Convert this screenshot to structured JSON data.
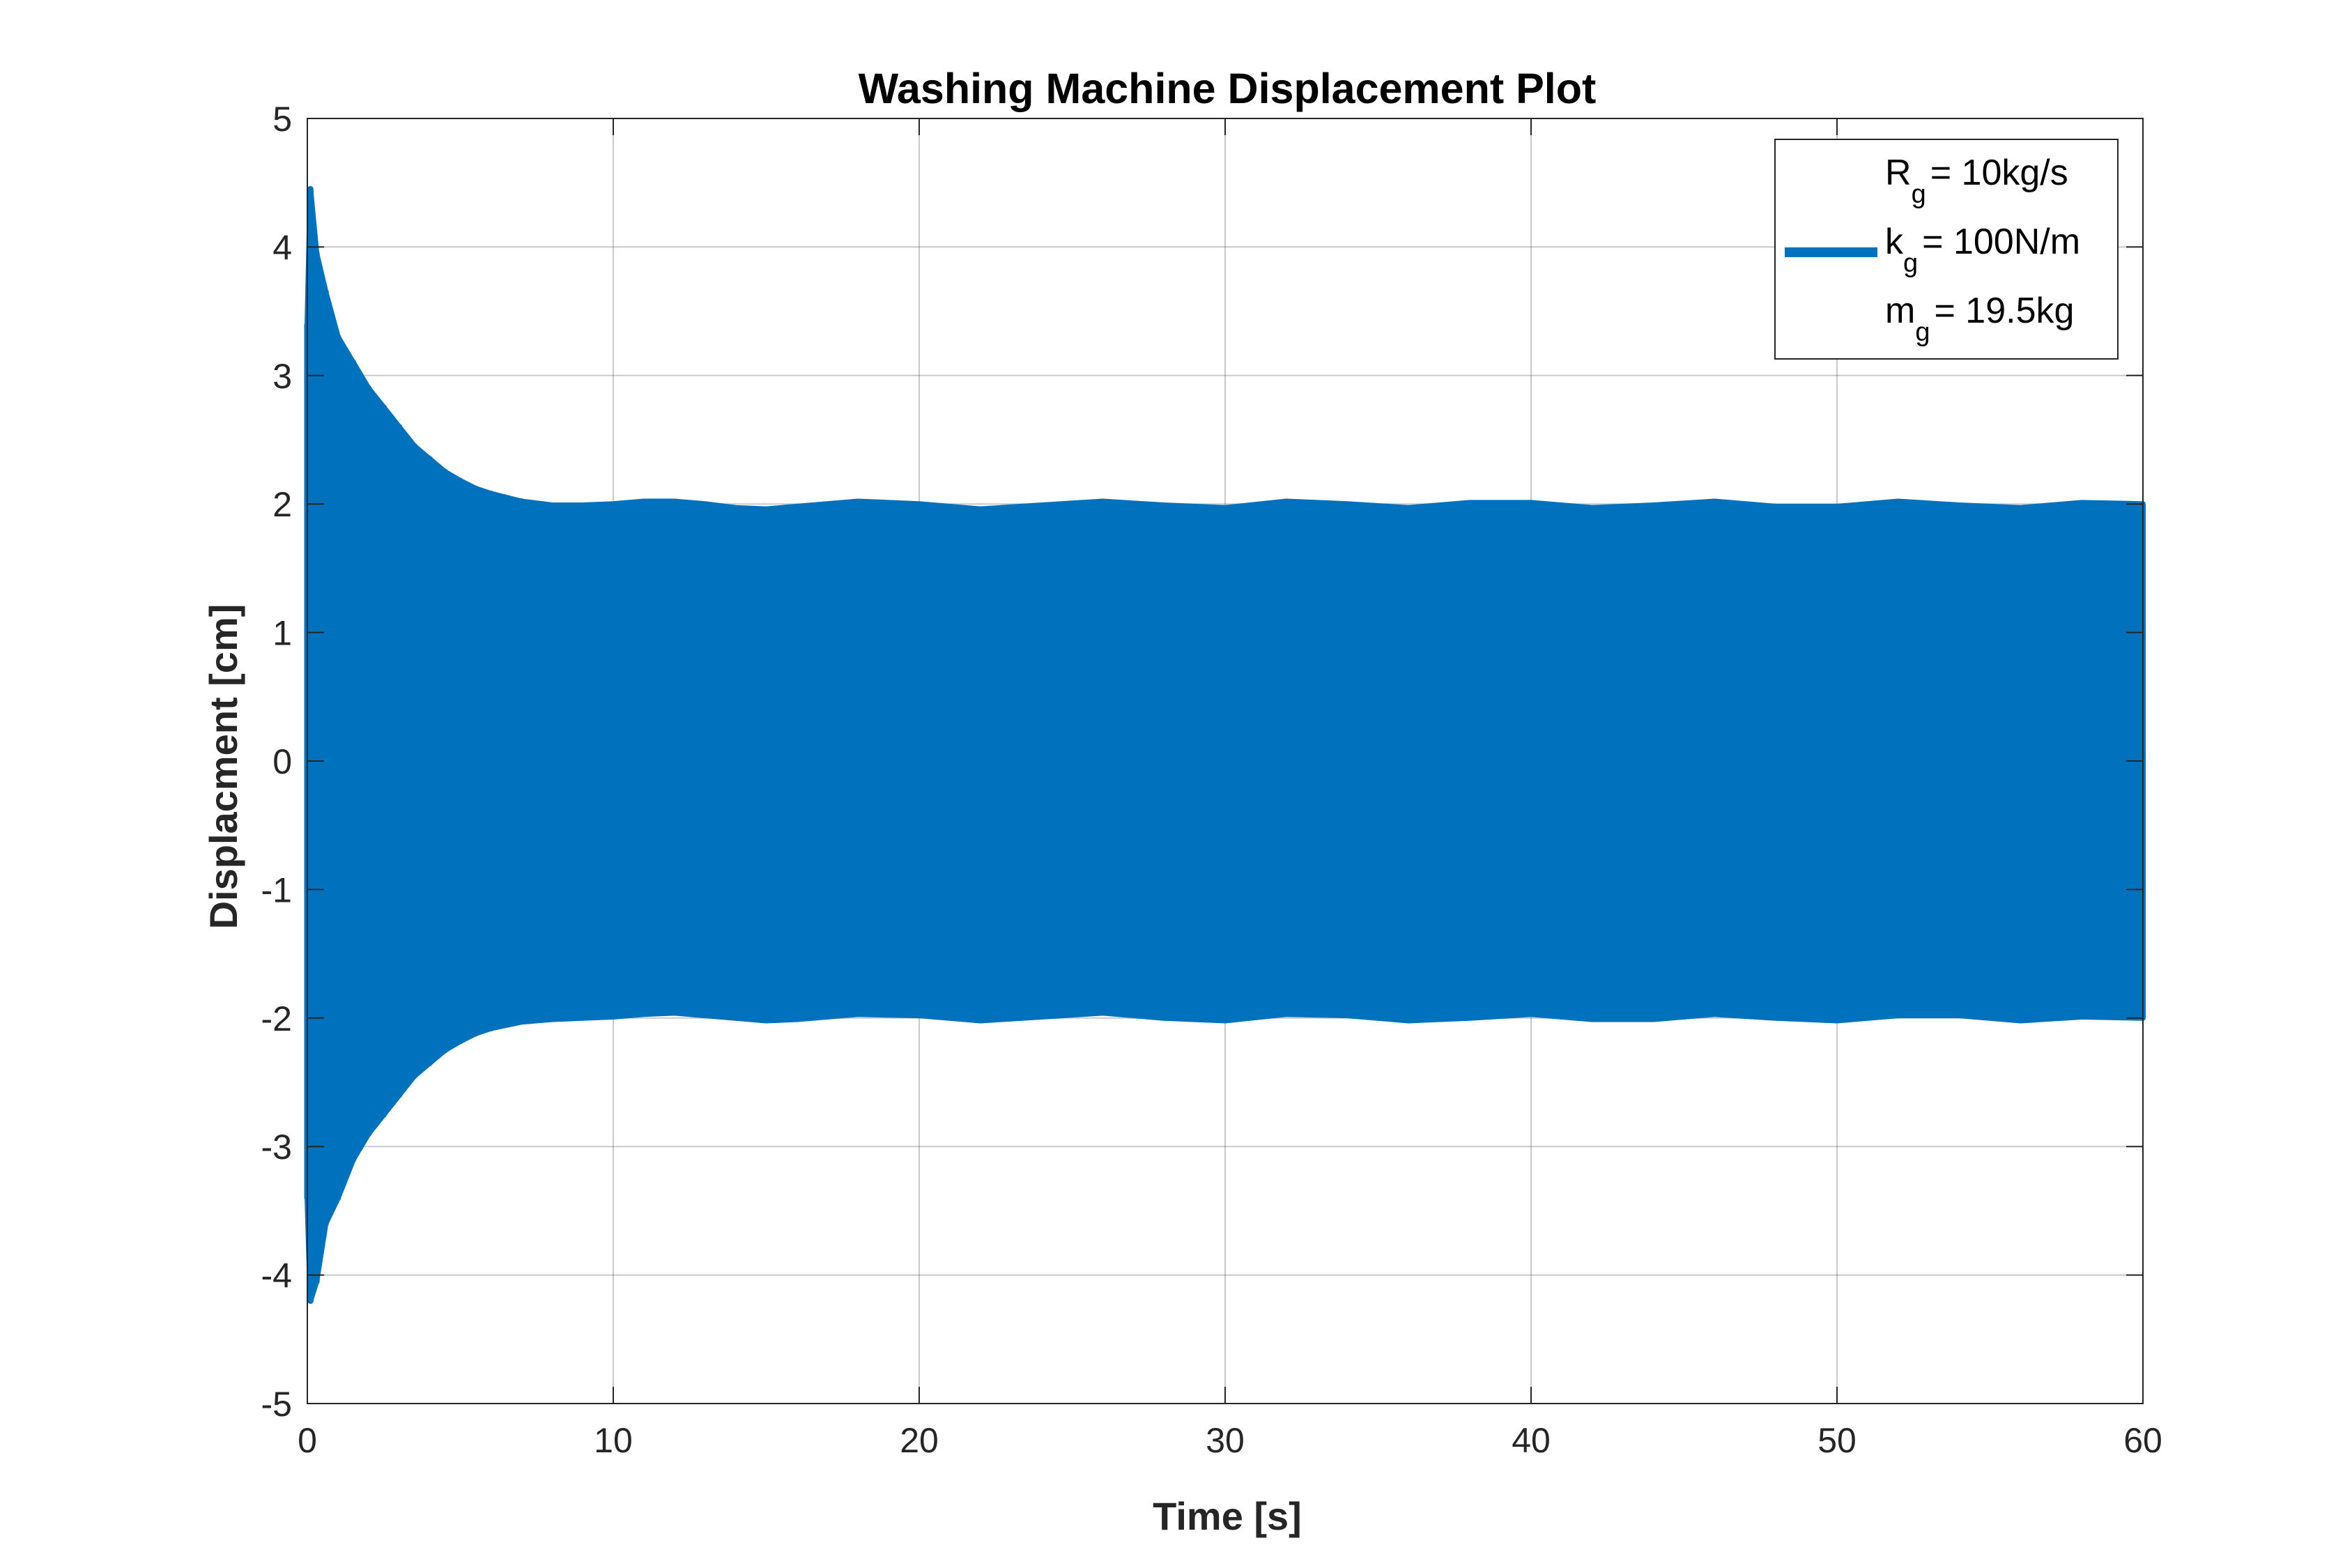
{
  "chart_data": {
    "type": "line",
    "title": "Washing Machine Displacement Plot",
    "xlabel": "Time [s]",
    "ylabel": "Displacment [cm]",
    "xlim": [
      0,
      60
    ],
    "ylim": [
      -5,
      5
    ],
    "xticks": [
      0,
      10,
      20,
      30,
      40,
      50,
      60
    ],
    "yticks": [
      -5,
      -4,
      -3,
      -2,
      -1,
      0,
      1,
      2,
      3,
      4,
      5
    ],
    "grid": true,
    "legend_position": "top-right",
    "series": [
      {
        "name": "k_g = 100N/m",
        "color": "#0072BD",
        "note_rendering": "dense oscillation; plotted as upper/lower envelope",
        "envelope_upper": {
          "x": [
            0,
            0.1,
            0.3,
            0.6,
            1.0,
            1.5,
            2.0,
            2.5,
            3.0,
            3.5,
            4.0,
            4.5,
            5.0,
            5.5,
            6.0,
            7.0,
            8.0,
            9.0,
            10.0,
            11.0,
            12.0,
            13.0,
            14.0,
            15.0,
            16.0,
            18.0,
            20.0,
            22.0,
            24.0,
            26.0,
            28.0,
            30.0,
            32.0,
            34.0,
            36.0,
            38.0,
            40.0,
            42.0,
            44.0,
            46.0,
            48.0,
            50.0,
            52.0,
            54.0,
            56.0,
            58.0,
            60.0
          ],
          "y": [
            3.4,
            4.45,
            3.95,
            3.65,
            3.3,
            3.1,
            2.9,
            2.75,
            2.6,
            2.45,
            2.35,
            2.25,
            2.18,
            2.12,
            2.08,
            2.02,
            1.99,
            1.99,
            2.0,
            2.02,
            2.02,
            2.0,
            1.97,
            1.96,
            1.98,
            2.02,
            2.0,
            1.96,
            1.99,
            2.02,
            1.99,
            1.97,
            2.02,
            2.0,
            1.97,
            2.01,
            2.01,
            1.97,
            1.99,
            2.02,
            1.98,
            1.98,
            2.02,
            1.99,
            1.97,
            2.01,
            2.0
          ]
        },
        "envelope_lower": {
          "x": [
            0,
            0.1,
            0.3,
            0.6,
            1.0,
            1.5,
            2.0,
            2.5,
            3.0,
            3.5,
            4.0,
            4.5,
            5.0,
            5.5,
            6.0,
            7.0,
            8.0,
            9.0,
            10.0,
            11.0,
            12.0,
            13.0,
            14.0,
            15.0,
            16.0,
            18.0,
            20.0,
            22.0,
            24.0,
            26.0,
            28.0,
            30.0,
            32.0,
            34.0,
            36.0,
            38.0,
            40.0,
            42.0,
            44.0,
            46.0,
            48.0,
            50.0,
            52.0,
            54.0,
            56.0,
            58.0,
            60.0
          ],
          "y": [
            -3.4,
            -4.2,
            -4.05,
            -3.6,
            -3.4,
            -3.1,
            -2.9,
            -2.75,
            -2.6,
            -2.45,
            -2.35,
            -2.25,
            -2.18,
            -2.12,
            -2.08,
            -2.03,
            -2.01,
            -2.0,
            -1.99,
            -1.97,
            -1.96,
            -1.98,
            -2.0,
            -2.02,
            -2.01,
            -1.97,
            -1.98,
            -2.02,
            -1.99,
            -1.96,
            -2.0,
            -2.02,
            -1.97,
            -1.98,
            -2.02,
            -2.0,
            -1.97,
            -2.01,
            -2.01,
            -1.97,
            -2.0,
            -2.02,
            -1.98,
            -1.98,
            -2.02,
            -1.99,
            -2.0
          ]
        }
      }
    ],
    "legend": {
      "entries": [
        {
          "symbol": "R",
          "subscript": "g",
          "text": "= 10kg/s",
          "has_swatch": false
        },
        {
          "symbol": "k",
          "subscript": "g",
          "text": "= 100N/m",
          "has_swatch": true
        },
        {
          "symbol": "m",
          "subscript": "g",
          "text": "= 19.5kg",
          "has_swatch": false
        }
      ]
    }
  }
}
